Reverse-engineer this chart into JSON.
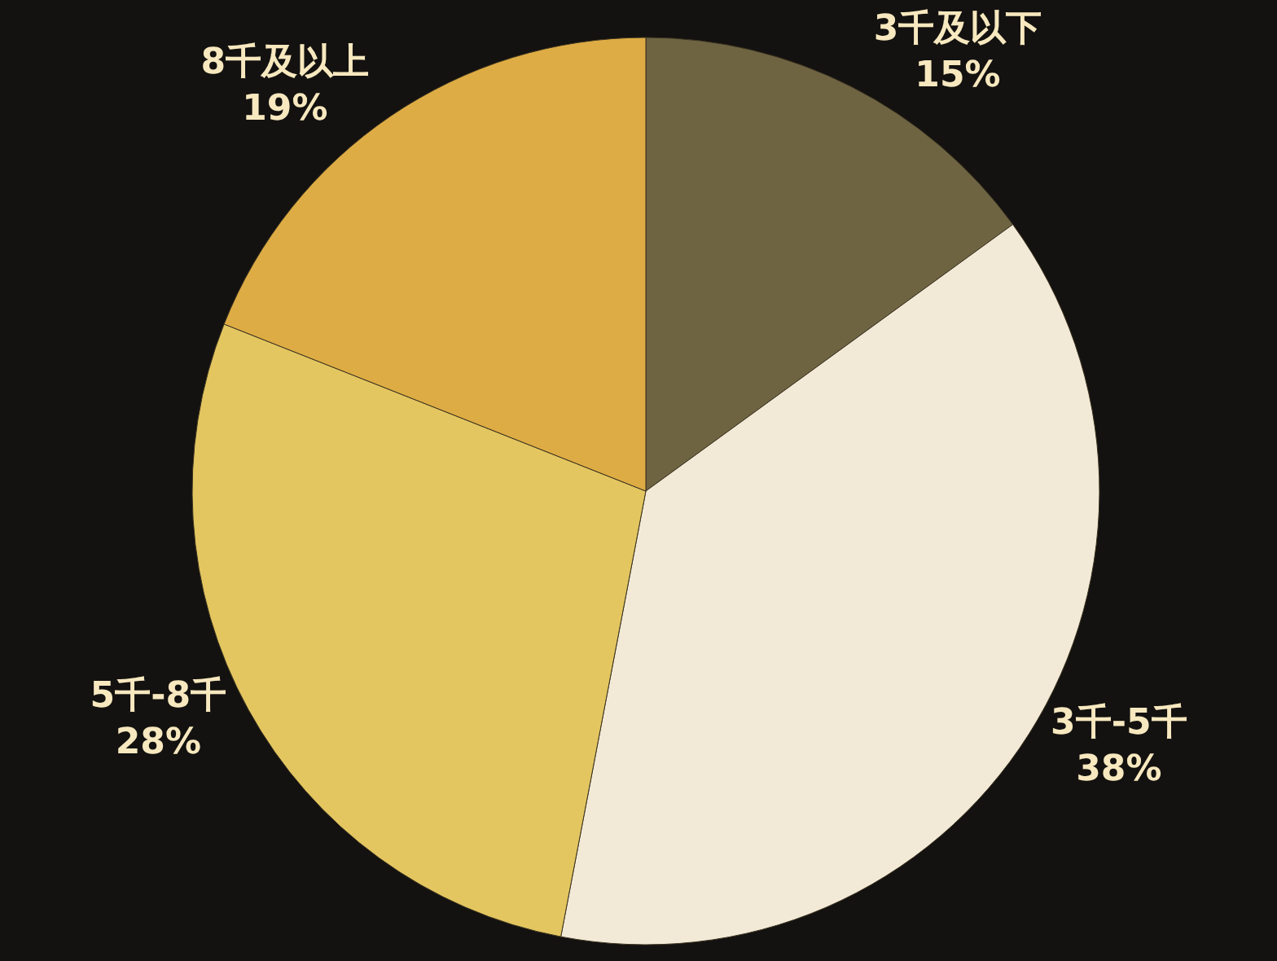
{
  "chart_data": {
    "type": "pie",
    "categories": [
      "3千及以下",
      "3千-5千",
      "5千-8千",
      "8千及以上"
    ],
    "values": [
      15,
      38,
      28,
      19
    ],
    "value_labels": [
      "15%",
      "38%",
      "28%",
      "19%"
    ],
    "colors": [
      "#6f6442",
      "#f2ead6",
      "#e3c660",
      "#deac44"
    ],
    "legend": false
  }
}
